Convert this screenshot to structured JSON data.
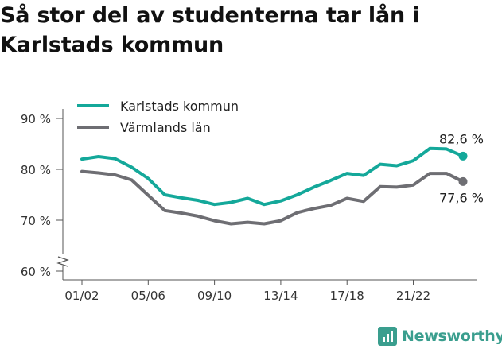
{
  "title": "Så stor del av studenterna tar lån i Karlstads kommun",
  "brand": {
    "name": "Newsworthy",
    "icon": "bar-chart-icon",
    "color": "#3a9e8e"
  },
  "chart_data": {
    "type": "line",
    "title": "Så stor del av studenterna tar lån i Karlstads kommun",
    "xlabel": "",
    "ylabel": "",
    "ylim": [
      60,
      90
    ],
    "y_axis_break": true,
    "grid": false,
    "legend_position": "top-left",
    "yticks": [
      {
        "value": 60,
        "label": "60 %"
      },
      {
        "value": 70,
        "label": "70 %"
      },
      {
        "value": 80,
        "label": "80 %"
      },
      {
        "value": 90,
        "label": "90 %"
      }
    ],
    "x": [
      "01/02",
      "02/03",
      "03/04",
      "04/05",
      "05/06",
      "06/07",
      "07/08",
      "08/09",
      "09/10",
      "10/11",
      "11/12",
      "12/13",
      "13/14",
      "14/15",
      "15/16",
      "16/17",
      "17/18",
      "18/19",
      "19/20",
      "20/21",
      "21/22",
      "22/23",
      "23/24",
      "24/25"
    ],
    "xtick_labels": [
      "01/02",
      "05/06",
      "09/10",
      "13/14",
      "17/18",
      "21/22"
    ],
    "series": [
      {
        "name": "Karlstads kommun",
        "color": "#14a89a",
        "values": [
          82.0,
          82.5,
          82.1,
          80.4,
          78.2,
          75.0,
          74.4,
          73.9,
          73.1,
          73.5,
          74.3,
          73.1,
          73.8,
          75.0,
          76.5,
          77.8,
          79.2,
          78.8,
          81.0,
          80.7,
          81.7,
          84.1,
          84.0,
          82.6
        ],
        "end_label": "82,6 %"
      },
      {
        "name": "Värmlands län",
        "color": "#6e6e73",
        "values": [
          79.6,
          79.3,
          78.9,
          77.9,
          74.9,
          71.9,
          71.4,
          70.8,
          69.9,
          69.3,
          69.6,
          69.3,
          69.9,
          71.5,
          72.3,
          72.9,
          74.3,
          73.7,
          76.6,
          76.5,
          76.9,
          79.2,
          79.2,
          77.6
        ],
        "end_label": "77,6 %"
      }
    ]
  }
}
